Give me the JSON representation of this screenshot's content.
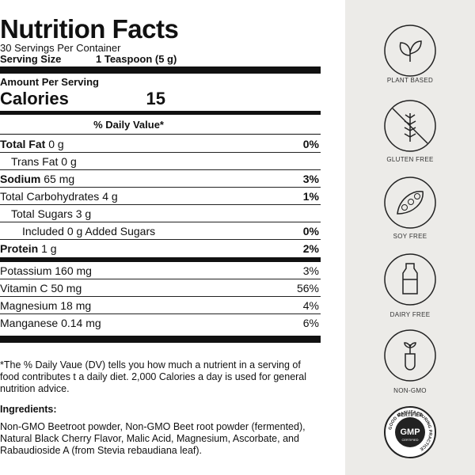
{
  "header": {
    "title": "Nutrition Facts",
    "servings": "30 Servings Per Container",
    "serving_size_label": "Serving Size",
    "serving_size_value": "1 Teaspoon (5 g)",
    "amount_per_serving": "Amount Per Serving",
    "calories_label": "Calories",
    "calories_value": "15",
    "dv_header": "% Daily Value*"
  },
  "rows": [
    {
      "name": "Total Fat",
      "amount": "0 g",
      "dv": "0%"
    },
    {
      "name": "Trans Fat",
      "amount": "0 g"
    },
    {
      "name": "Sodium",
      "amount": "65 mg",
      "dv": "3%"
    },
    {
      "name": "Total Carbohydrates",
      "amount": "4 g",
      "dv": "1%"
    },
    {
      "name": "Total Sugars",
      "amount": "3 g"
    },
    {
      "name": "Included 0 g Added Sugars",
      "dv": "0%"
    },
    {
      "name": "Protein",
      "amount": "1 g",
      "dv": "2%"
    },
    {
      "name": "Potassium",
      "amount": "160 mg",
      "dv": "3%"
    },
    {
      "name": "Vitamin C",
      "amount": "50 mg",
      "dv": "56%"
    },
    {
      "name": "Magnesium",
      "amount": "18 mg",
      "dv": "4%"
    },
    {
      "name": "Manganese",
      "amount": "0.14 mg",
      "dv": "6%"
    }
  ],
  "footnote": "*The % Daily Vaue (DV) tells you how much a nutrient in a serving of food contributes t a daily diet. 2,000 Calories a day is used for general nutrition advice.",
  "ingredients": {
    "label": "Ingredients:",
    "text": "Non-GMO Beetroot powder, Non-GMO Beet root powder (fermented), Natural Black Cherry Flavor, Malic Acid, Magnesium, Ascorbate, and Rabaudioside A (from Stevia rebaudiana leaf)."
  },
  "badges": [
    "PLANT BASED",
    "GLUTEN FREE",
    "SOY FREE",
    "DAIRY FREE",
    "NON-GMO"
  ],
  "gmp_badge": {
    "top": "CERTIFIED",
    "center": "GMP",
    "ring": "GOOD MANUFACTURING PRACTICE",
    "sub": "CERTIFIED"
  }
}
